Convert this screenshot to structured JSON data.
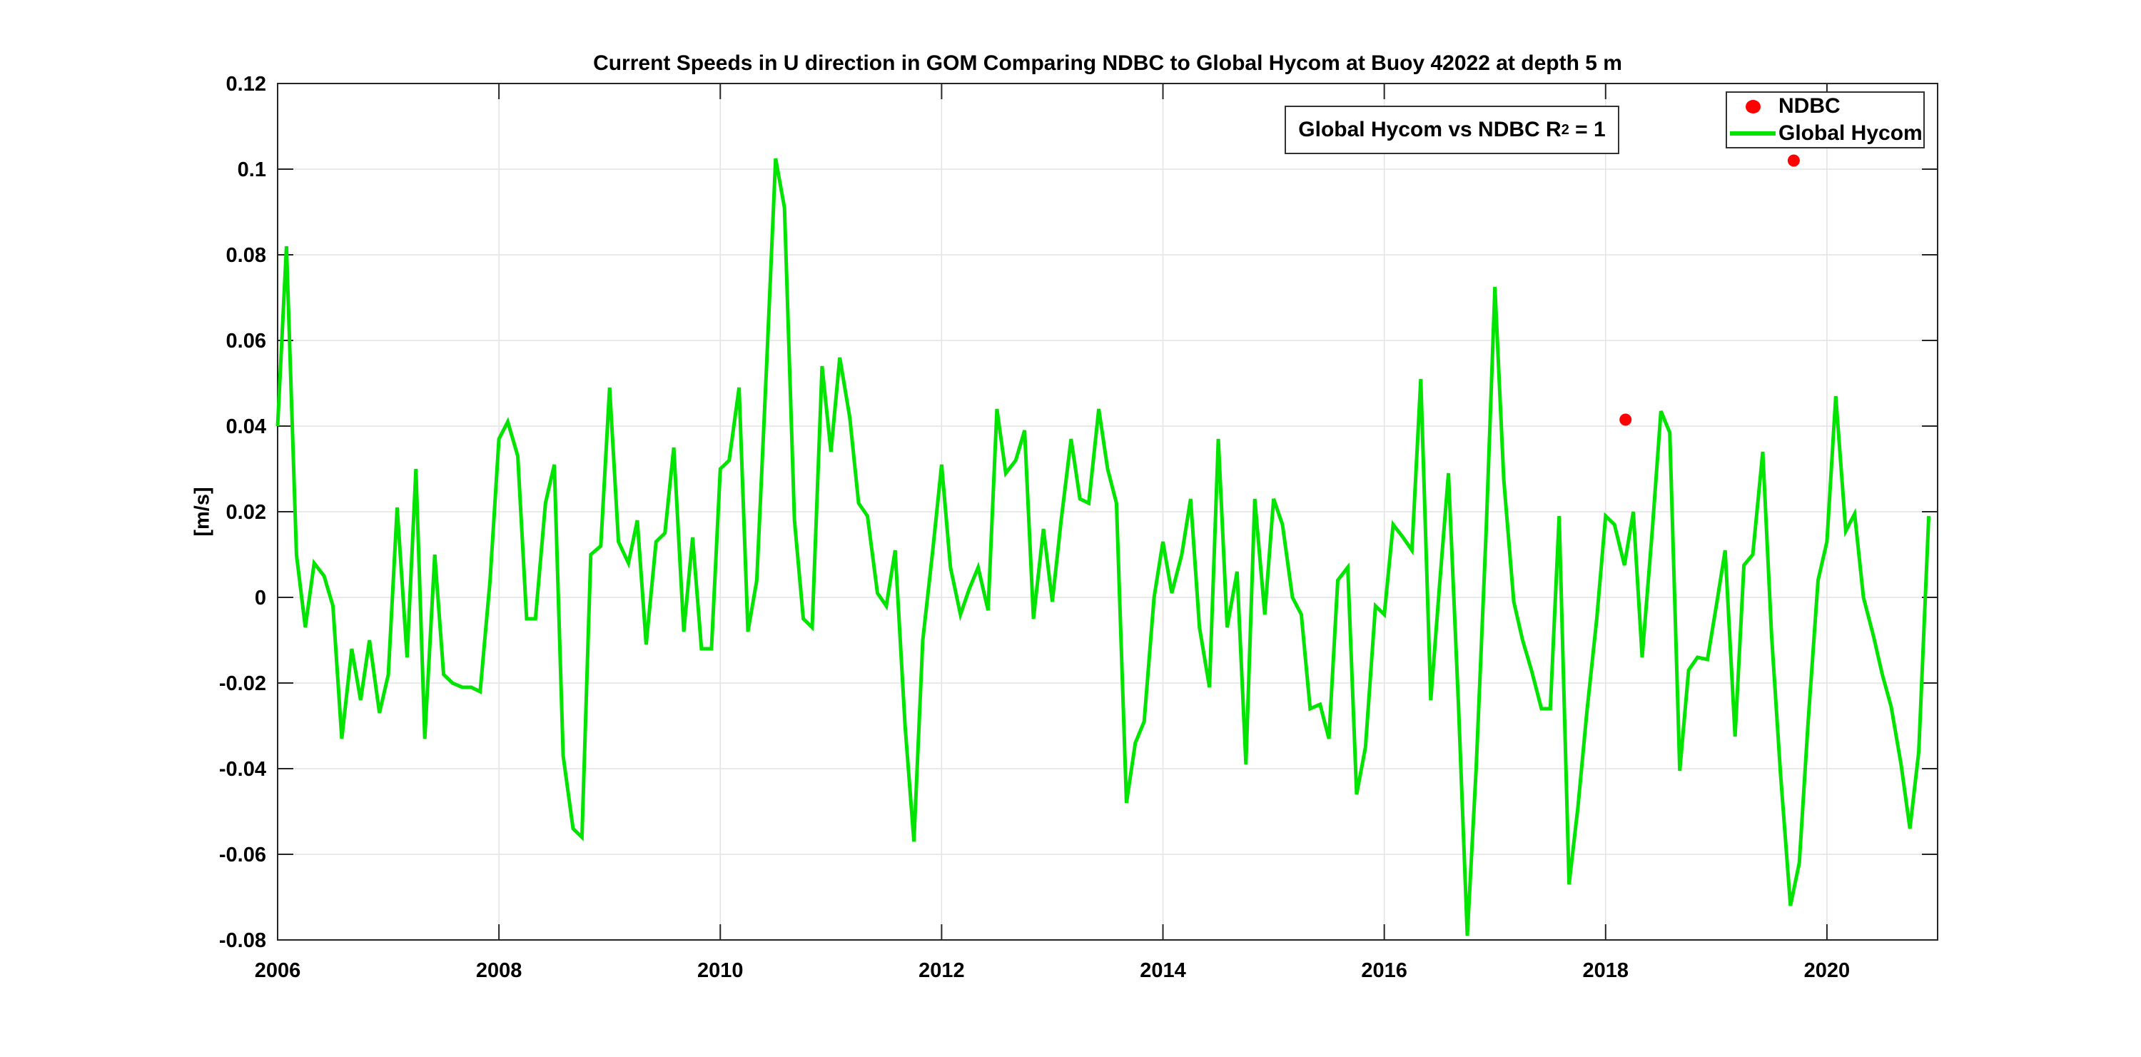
{
  "figure": {
    "title": "Current Speeds in U direction in GOM Comparing NDBC to Global Hycom at Buoy  42022  at depth  5 m",
    "ylabel": "[m/s]"
  },
  "annotation": {
    "prefix": "Global Hycom vs NDBC R",
    "sup": "2",
    "suffix": " = 1"
  },
  "legend": {
    "items": [
      {
        "label": "NDBC",
        "marker": "dot",
        "color": "#ff0000"
      },
      {
        "label": "Global Hycom",
        "marker": "line",
        "color": "#00e400"
      }
    ]
  },
  "colors": {
    "ndbc": "#ff0000",
    "hycom": "#00e400",
    "grid": "#e3e3e3",
    "axis": "#262626",
    "text": "#000000",
    "background": "#ffffff"
  },
  "chart_data": {
    "type": "line",
    "title": "Current Speeds in U direction in GOM Comparing NDBC to Global Hycom at Buoy  42022  at depth  5 m",
    "xlabel": "",
    "ylabel": "[m/s]",
    "xlim": [
      2006,
      2021
    ],
    "ylim": [
      -0.08,
      0.12
    ],
    "grid": true,
    "legend_position": "top-right",
    "xticks": [
      {
        "v": 2006,
        "label": "2006"
      },
      {
        "v": 2008,
        "label": "2008"
      },
      {
        "v": 2010,
        "label": "2010"
      },
      {
        "v": 2012,
        "label": "2012"
      },
      {
        "v": 2014,
        "label": "2014"
      },
      {
        "v": 2016,
        "label": "2016"
      },
      {
        "v": 2018,
        "label": "2018"
      },
      {
        "v": 2020,
        "label": "2020"
      }
    ],
    "yticks": [
      {
        "v": -0.08,
        "label": "-0.08"
      },
      {
        "v": -0.06,
        "label": "-0.06"
      },
      {
        "v": -0.04,
        "label": "-0.04"
      },
      {
        "v": -0.02,
        "label": "-0.02"
      },
      {
        "v": 0,
        "label": "0"
      },
      {
        "v": 0.02,
        "label": "0.02"
      },
      {
        "v": 0.04,
        "label": "0.04"
      },
      {
        "v": 0.06,
        "label": "0.06"
      },
      {
        "v": 0.08,
        "label": "0.08"
      },
      {
        "v": 0.1,
        "label": "0.1"
      },
      {
        "v": 0.12,
        "label": "0.12"
      }
    ],
    "series": [
      {
        "name": "NDBC",
        "type": "scatter",
        "color": "#ff0000",
        "points": [
          [
            2018.18,
            0.0415
          ],
          [
            2019.7,
            0.102
          ]
        ]
      },
      {
        "name": "Global Hycom",
        "type": "line",
        "color": "#00e400",
        "points": [
          [
            2006.0,
            0.04
          ],
          [
            2006.08,
            0.082
          ],
          [
            2006.17,
            0.01
          ],
          [
            2006.25,
            -0.007
          ],
          [
            2006.33,
            0.008
          ],
          [
            2006.42,
            0.005
          ],
          [
            2006.5,
            -0.002
          ],
          [
            2006.58,
            -0.033
          ],
          [
            2006.67,
            -0.012
          ],
          [
            2006.75,
            -0.024
          ],
          [
            2006.83,
            -0.01
          ],
          [
            2006.92,
            -0.027
          ],
          [
            2007.0,
            -0.018
          ],
          [
            2007.08,
            0.021
          ],
          [
            2007.17,
            -0.014
          ],
          [
            2007.25,
            0.03
          ],
          [
            2007.33,
            -0.033
          ],
          [
            2007.42,
            0.01
          ],
          [
            2007.5,
            -0.018
          ],
          [
            2007.58,
            -0.02
          ],
          [
            2007.67,
            -0.021
          ],
          [
            2007.75,
            -0.021
          ],
          [
            2007.83,
            -0.022
          ],
          [
            2007.92,
            0.004
          ],
          [
            2008.0,
            0.037
          ],
          [
            2008.08,
            0.041
          ],
          [
            2008.17,
            0.033
          ],
          [
            2008.25,
            -0.005
          ],
          [
            2008.33,
            -0.005
          ],
          [
            2008.42,
            0.022
          ],
          [
            2008.5,
            0.031
          ],
          [
            2008.58,
            -0.037
          ],
          [
            2008.67,
            -0.054
          ],
          [
            2008.75,
            -0.056
          ],
          [
            2008.83,
            0.01
          ],
          [
            2008.92,
            0.012
          ],
          [
            2009.0,
            0.049
          ],
          [
            2009.08,
            0.013
          ],
          [
            2009.17,
            0.008
          ],
          [
            2009.25,
            0.018
          ],
          [
            2009.33,
            -0.011
          ],
          [
            2009.42,
            0.013
          ],
          [
            2009.5,
            0.015
          ],
          [
            2009.58,
            0.035
          ],
          [
            2009.67,
            -0.008
          ],
          [
            2009.75,
            0.014
          ],
          [
            2009.83,
            -0.012
          ],
          [
            2009.92,
            -0.012
          ],
          [
            2010.0,
            0.03
          ],
          [
            2010.08,
            0.032
          ],
          [
            2010.17,
            0.049
          ],
          [
            2010.25,
            -0.008
          ],
          [
            2010.33,
            0.004
          ],
          [
            2010.42,
            0.055
          ],
          [
            2010.5,
            0.1025
          ],
          [
            2010.58,
            0.091
          ],
          [
            2010.67,
            0.018
          ],
          [
            2010.75,
            -0.005
          ],
          [
            2010.83,
            -0.007
          ],
          [
            2010.92,
            0.054
          ],
          [
            2011.0,
            0.034
          ],
          [
            2011.08,
            0.056
          ],
          [
            2011.17,
            0.042
          ],
          [
            2011.25,
            0.022
          ],
          [
            2011.33,
            0.019
          ],
          [
            2011.42,
            0.001
          ],
          [
            2011.5,
            -0.002
          ],
          [
            2011.58,
            0.011
          ],
          [
            2011.67,
            -0.03
          ],
          [
            2011.75,
            -0.057
          ],
          [
            2011.83,
            -0.01
          ],
          [
            2011.92,
            0.011
          ],
          [
            2012.0,
            0.031
          ],
          [
            2012.08,
            0.007
          ],
          [
            2012.17,
            -0.004
          ],
          [
            2012.25,
            0.002
          ],
          [
            2012.33,
            0.007
          ],
          [
            2012.42,
            -0.003
          ],
          [
            2012.5,
            0.044
          ],
          [
            2012.58,
            0.029
          ],
          [
            2012.67,
            0.032
          ],
          [
            2012.75,
            0.039
          ],
          [
            2012.83,
            -0.005
          ],
          [
            2012.92,
            0.016
          ],
          [
            2013.0,
            -0.001
          ],
          [
            2013.08,
            0.018
          ],
          [
            2013.17,
            0.037
          ],
          [
            2013.25,
            0.023
          ],
          [
            2013.33,
            0.022
          ],
          [
            2013.42,
            0.044
          ],
          [
            2013.5,
            0.03
          ],
          [
            2013.58,
            0.022
          ],
          [
            2013.67,
            -0.048
          ],
          [
            2013.75,
            -0.034
          ],
          [
            2013.83,
            -0.029
          ],
          [
            2013.92,
            0.0
          ],
          [
            2014.0,
            0.013
          ],
          [
            2014.08,
            0.001
          ],
          [
            2014.17,
            0.01
          ],
          [
            2014.25,
            0.023
          ],
          [
            2014.33,
            -0.007
          ],
          [
            2014.42,
            -0.021
          ],
          [
            2014.5,
            0.037
          ],
          [
            2014.58,
            -0.007
          ],
          [
            2014.67,
            0.006
          ],
          [
            2014.75,
            -0.039
          ],
          [
            2014.83,
            0.023
          ],
          [
            2014.92,
            -0.004
          ],
          [
            2015.0,
            0.023
          ],
          [
            2015.08,
            0.017
          ],
          [
            2015.17,
            0.0
          ],
          [
            2015.25,
            -0.004
          ],
          [
            2015.33,
            -0.026
          ],
          [
            2015.42,
            -0.025
          ],
          [
            2015.5,
            -0.033
          ],
          [
            2015.58,
            0.004
          ],
          [
            2015.67,
            0.007
          ],
          [
            2015.75,
            -0.046
          ],
          [
            2015.83,
            -0.035
          ],
          [
            2015.92,
            -0.002
          ],
          [
            2016.0,
            -0.004
          ],
          [
            2016.08,
            0.017
          ],
          [
            2016.17,
            0.014
          ],
          [
            2016.25,
            0.011
          ],
          [
            2016.33,
            0.051
          ],
          [
            2016.42,
            -0.024
          ],
          [
            2016.5,
            0.003
          ],
          [
            2016.58,
            0.029
          ],
          [
            2016.67,
            -0.025
          ],
          [
            2016.75,
            -0.079
          ],
          [
            2016.83,
            -0.04
          ],
          [
            2016.92,
            0.015
          ],
          [
            2017.0,
            0.0725
          ],
          [
            2017.08,
            0.0275
          ],
          [
            2017.17,
            -0.001
          ],
          [
            2017.25,
            -0.01
          ],
          [
            2017.33,
            -0.017
          ],
          [
            2017.42,
            -0.026
          ],
          [
            2017.5,
            -0.026
          ],
          [
            2017.58,
            0.019
          ],
          [
            2017.67,
            -0.067
          ],
          [
            2017.75,
            -0.049
          ],
          [
            2017.83,
            -0.027
          ],
          [
            2017.92,
            -0.005
          ],
          [
            2018.0,
            0.019
          ],
          [
            2018.08,
            0.017
          ],
          [
            2018.17,
            0.0075
          ],
          [
            2018.25,
            0.02
          ],
          [
            2018.33,
            -0.014
          ],
          [
            2018.42,
            0.015
          ],
          [
            2018.5,
            0.0435
          ],
          [
            2018.58,
            0.0385
          ],
          [
            2018.67,
            -0.0405
          ],
          [
            2018.75,
            -0.017
          ],
          [
            2018.83,
            -0.014
          ],
          [
            2018.92,
            -0.0145
          ],
          [
            2019.0,
            -0.002
          ],
          [
            2019.08,
            0.011
          ],
          [
            2019.17,
            -0.0325
          ],
          [
            2019.25,
            0.0075
          ],
          [
            2019.33,
            0.01
          ],
          [
            2019.42,
            0.034
          ],
          [
            2019.5,
            -0.009
          ],
          [
            2019.58,
            -0.041
          ],
          [
            2019.67,
            -0.072
          ],
          [
            2019.75,
            -0.062
          ],
          [
            2019.83,
            -0.029
          ],
          [
            2019.92,
            0.004
          ],
          [
            2020.0,
            0.013
          ],
          [
            2020.08,
            0.047
          ],
          [
            2020.17,
            0.0155
          ],
          [
            2020.25,
            0.0195
          ],
          [
            2020.33,
            0.0
          ],
          [
            2020.42,
            -0.009
          ],
          [
            2020.5,
            -0.018
          ],
          [
            2020.58,
            -0.0255
          ],
          [
            2020.67,
            -0.039
          ],
          [
            2020.75,
            -0.054
          ],
          [
            2020.83,
            -0.036
          ],
          [
            2020.92,
            0.019
          ]
        ]
      }
    ]
  }
}
